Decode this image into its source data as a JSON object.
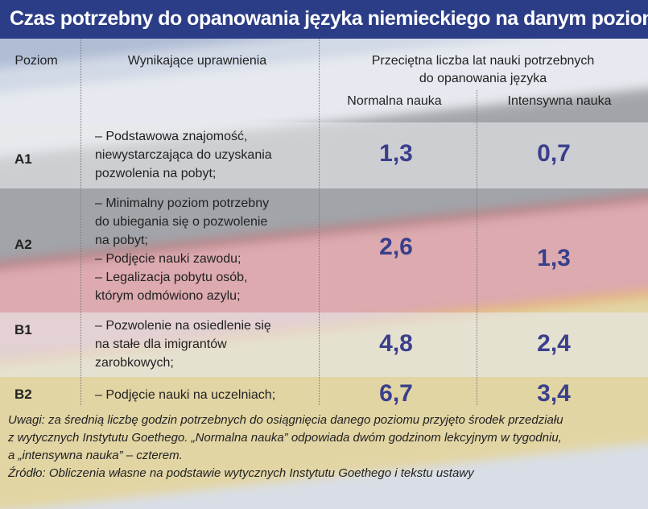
{
  "title": "Czas potrzebny do opanowania języka niemieckiego na danym poziomie",
  "table": {
    "headers": {
      "level": "Poziom",
      "permissions": "Wynikające uprawnienia",
      "years_line1": "Przeciętna liczba lat nauki potrzebnych",
      "years_line2": "do opanowania języka",
      "normal": "Normalna nauka",
      "intensive": "Intensywna nauka"
    },
    "rows": [
      {
        "level": "A1",
        "permissions": [
          "– Podstawowa znajomość,",
          "niewystarczająca do uzyskania",
          "pozwolenia na pobyt;"
        ],
        "normal": "1,3",
        "intensive": "0,7"
      },
      {
        "level": "A2",
        "permissions": [
          "– Minimalny poziom potrzebny",
          "do ubiegania się o pozwolenie",
          "na pobyt;",
          "– Podjęcie nauki zawodu;",
          "– Legalizacja pobytu osób,",
          "którym odmówiono azylu;"
        ],
        "normal": "2,6",
        "intensive": "1,3"
      },
      {
        "level": "B1",
        "permissions": [
          "– Pozwolenie na osiedlenie się",
          "na stałe dla imigrantów",
          "zarobkowych;"
        ],
        "normal": "4,8",
        "intensive": "2,4"
      },
      {
        "level": "B2",
        "permissions": [
          "– Podjęcie nauki na uczelniach;"
        ],
        "normal": "6,7",
        "intensive": "3,4"
      }
    ]
  },
  "notes": {
    "line1": "Uwagi: za średnią liczbę godzin potrzebnych do osiągnięcia danego poziomu przyjęto środek przedziału",
    "line2": "z wytycznych Instytutu Goethego. „Normalna nauka” odpowiada dwóm godzinom lekcyjnym w tygodniu,",
    "line3": "a „intensywna nauka” – czterem.",
    "source": "Źródło: Obliczenia własne na podstawie wytycznych Instytutu Goethego i tekstu ustawy"
  }
}
